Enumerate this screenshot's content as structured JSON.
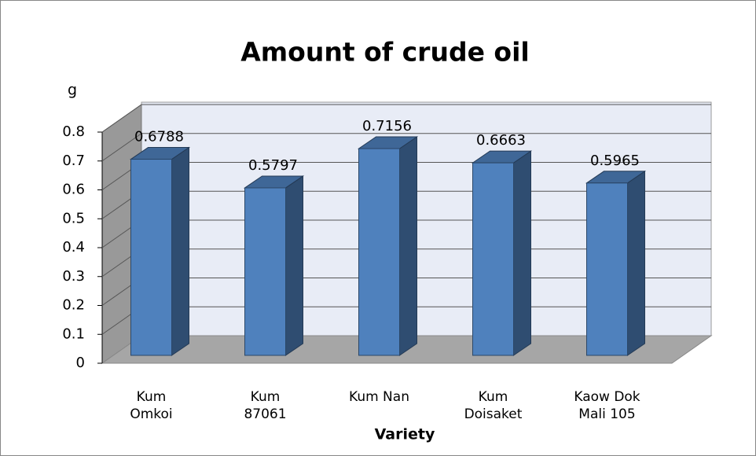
{
  "chart_data": {
    "type": "bar",
    "title": "Amount of crude oil",
    "y_label": "g",
    "x_label": "Variety",
    "categories": [
      "Kum Omkoi",
      "Kum 87061",
      "Kum Nan",
      "Kum Doisaket",
      "Kaow Dok Mali 105"
    ],
    "values": [
      0.6788,
      0.5797,
      0.7156,
      0.6663,
      0.5965
    ],
    "color": "#4f81bd",
    "ylim": [
      0,
      0.8
    ],
    "yticks": [
      0,
      0.1,
      0.2,
      0.3,
      0.4,
      0.5,
      0.6,
      0.7,
      0.8
    ],
    "grid": true
  }
}
